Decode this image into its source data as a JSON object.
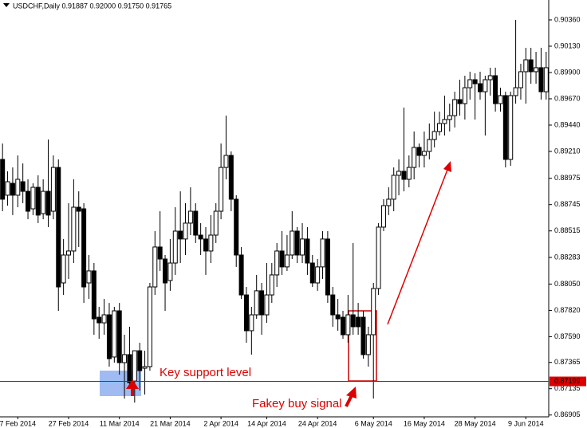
{
  "chart_data": {
    "type": "candlestick",
    "title": "USDCHF,Daily  0.91887 0.92000 0.91750 0.91765",
    "categories": [
      null,
      null,
      null,
      "7 Feb 2014",
      null,
      null,
      null,
      null,
      null,
      null,
      null,
      null,
      null,
      "27 Feb 2014",
      null,
      null,
      null,
      null,
      null,
      null,
      null,
      null,
      null,
      "11 Mar 2014",
      null,
      null,
      null,
      null,
      null,
      null,
      null,
      null,
      null,
      "21 Mar 2014",
      null,
      null,
      null,
      null,
      null,
      null,
      null,
      null,
      null,
      "2 Apr 2014",
      null,
      null,
      null,
      null,
      null,
      null,
      null,
      null,
      "14 Apr 2014",
      null,
      null,
      null,
      null,
      null,
      null,
      null,
      null,
      null,
      "24 Apr 2014",
      null,
      null,
      null,
      null,
      null,
      null,
      null,
      null,
      null,
      null,
      "6 May 2014",
      null,
      null,
      null,
      null,
      null,
      null,
      null,
      null,
      null,
      "16 May 2014",
      null,
      null,
      null,
      null,
      null,
      null,
      null,
      null,
      null,
      "28 May 2014",
      null,
      null,
      null,
      null,
      null,
      null,
      null,
      null,
      null,
      "9 Jun 2014",
      null,
      null,
      null,
      null
    ],
    "open": [
      0.8914,
      0.88827,
      0.88931,
      0.88827,
      0.88945,
      0.88861,
      0.88708,
      0.88896,
      0.88666,
      0.88861,
      0.88687,
      0.8907,
      0.8806,
      0.88304,
      0.88339,
      0.88722,
      0.88708,
      0.8806,
      0.88165,
      0.8776,
      0.87711,
      0.87781,
      0.87412,
      0.87816,
      0.87363,
      0.87433,
      0.87202,
      0.87467,
      0.87314,
      0.87328,
      0.88025,
      0.88374,
      0.88269,
      0.88081,
      0.88234,
      0.88513,
      0.88444,
      0.88583,
      0.88687,
      0.88478,
      0.88444,
      0.88339,
      0.88478,
      0.88687,
      0.8907,
      0.89175,
      0.88792,
      0.88304,
      0.87955,
      0.87642,
      0.87781,
      0.87991,
      0.87781,
      0.87955,
      0.8813,
      0.88339,
      0.882,
      0.88304,
      0.88513,
      0.88304,
      0.88444,
      0.88234,
      0.8806,
      0.882,
      0.88444,
      0.87955,
      0.87781,
      0.8776,
      0.87607,
      0.87781,
      0.8776,
      0.8776,
      0.87433,
      0.87607,
      0.88011,
      0.88548,
      0.88736,
      0.88792,
      0.89001,
      0.89036,
      0.88966,
      0.8907,
      0.89245,
      0.89175,
      0.8921,
      0.89314,
      0.89384,
      0.89454,
      0.89489,
      0.89523,
      0.89663,
      0.89628,
      0.89767,
      0.89837,
      0.89802,
      0.89732,
      0.89837,
      0.89872,
      0.89628,
      0.89698,
      0.8914,
      0.89698,
      0.89767,
      0.89907,
      0.90011,
      0.89907,
      0.89942,
      0.89732
    ],
    "high": [
      0.89279,
      0.89036,
      0.8907,
      0.89175,
      0.89105,
      0.88966,
      0.88931,
      0.89001,
      0.88966,
      0.89314,
      0.89175,
      0.8914,
      0.88444,
      0.88757,
      0.88966,
      0.88861,
      0.88757,
      0.88304,
      0.88234,
      0.87851,
      0.8792,
      0.87885,
      0.87851,
      0.87885,
      0.87607,
      0.87677,
      0.87467,
      0.87537,
      0.87467,
      0.8806,
      0.88513,
      0.88687,
      0.88304,
      0.88444,
      0.88722,
      0.88861,
      0.88757,
      0.88896,
      0.88757,
      0.88583,
      0.88548,
      0.88653,
      0.88757,
      0.89279,
      0.89523,
      0.8921,
      0.88827,
      0.88374,
      0.88025,
      0.87851,
      0.8813,
      0.8806,
      0.88234,
      0.88234,
      0.88409,
      0.88513,
      0.88478,
      0.88687,
      0.88548,
      0.88583,
      0.88548,
      0.88304,
      0.88269,
      0.88513,
      0.88513,
      0.88025,
      0.8792,
      0.87816,
      0.87955,
      0.88409,
      0.87885,
      0.87816,
      0.87677,
      0.8806,
      0.88583,
      0.88792,
      0.88896,
      0.8907,
      0.8914,
      0.89593,
      0.89175,
      0.89384,
      0.89279,
      0.89384,
      0.89454,
      0.89558,
      0.89558,
      0.89698,
      0.89628,
      0.89732,
      0.89837,
      0.89872,
      0.89907,
      0.89893,
      0.89907,
      0.89872,
      0.89942,
      0.89942,
      0.89767,
      0.89732,
      0.89732,
      0.9036,
      0.89976,
      0.90116,
      0.90116,
      0.90081,
      0.90116,
      0.90081
    ],
    "low": [
      0.88687,
      0.88736,
      0.88653,
      0.88722,
      0.88757,
      0.88617,
      0.88653,
      0.88583,
      0.88617,
      0.88548,
      0.88617,
      0.87816,
      0.87955,
      0.88095,
      0.88234,
      0.88374,
      0.87885,
      0.8792,
      0.87607,
      0.87572,
      0.87607,
      0.87328,
      0.87363,
      0.87258,
      0.87049,
      0.87154,
      0.87014,
      0.87119,
      0.87084,
      0.87293,
      0.87955,
      0.88165,
      0.87816,
      0.87991,
      0.8813,
      0.88234,
      0.88304,
      0.88478,
      0.88409,
      0.88304,
      0.8813,
      0.88234,
      0.88409,
      0.88617,
      0.88966,
      0.88687,
      0.882,
      0.8792,
      0.87537,
      0.87433,
      0.87746,
      0.87607,
      0.87711,
      0.87885,
      0.88025,
      0.8813,
      0.88165,
      0.88269,
      0.88234,
      0.88234,
      0.8813,
      0.88025,
      0.87991,
      0.88095,
      0.87885,
      0.87677,
      0.87642,
      0.87572,
      0.87537,
      0.87607,
      0.87607,
      0.87398,
      0.87328,
      0.87049,
      0.87955,
      0.88513,
      0.88653,
      0.88687,
      0.88827,
      0.88861,
      0.88896,
      0.88966,
      0.8907,
      0.8907,
      0.8914,
      0.89245,
      0.89349,
      0.89349,
      0.89384,
      0.89419,
      0.89523,
      0.89489,
      0.89663,
      0.89489,
      0.89663,
      0.89349,
      0.89698,
      0.89558,
      0.89558,
      0.8907,
      0.89084,
      0.89628,
      0.89663,
      0.89628,
      0.89802,
      0.89802,
      0.89663,
      0.89663
    ],
    "close": [
      0.88792,
      0.88945,
      0.88827,
      0.88966,
      0.88861,
      0.88687,
      0.88896,
      0.88653,
      0.88861,
      0.88653,
      0.8907,
      0.88025,
      0.88304,
      0.88339,
      0.88722,
      0.88687,
      0.88025,
      0.88165,
      0.87746,
      0.87711,
      0.87781,
      0.87398,
      0.87816,
      0.87363,
      0.87433,
      0.87188,
      0.87467,
      0.87293,
      0.87328,
      0.88025,
      0.88374,
      0.88269,
      0.8806,
      0.88234,
      0.88513,
      0.88444,
      0.88583,
      0.88687,
      0.88478,
      0.88444,
      0.88339,
      0.88478,
      0.88687,
      0.8907,
      0.89175,
      0.88792,
      0.88304,
      0.87955,
      0.87642,
      0.87781,
      0.87991,
      0.87781,
      0.87955,
      0.8813,
      0.88339,
      0.882,
      0.88304,
      0.88513,
      0.88304,
      0.88444,
      0.88234,
      0.8806,
      0.882,
      0.88444,
      0.87955,
      0.87781,
      0.87746,
      0.87607,
      0.87781,
      0.87677,
      0.87677,
      0.87433,
      0.87607,
      0.88011,
      0.88548,
      0.88736,
      0.88792,
      0.89001,
      0.89036,
      0.88966,
      0.8907,
      0.89245,
      0.89175,
      0.8921,
      0.89314,
      0.89384,
      0.89454,
      0.89489,
      0.89523,
      0.89663,
      0.89628,
      0.89767,
      0.89837,
      0.89802,
      0.89732,
      0.89837,
      0.89872,
      0.89628,
      0.89698,
      0.8914,
      0.89698,
      0.89767,
      0.89907,
      0.90011,
      0.89907,
      0.89942,
      0.89732,
      0.89942
    ],
    "bull_color": "#ffffff",
    "bear_color": "#000000",
    "ylim": [
      0.86889,
      0.90534
    ],
    "yticks": [
      {
        "value": 0.9036,
        "label": "0.90360"
      },
      {
        "value": 0.9013,
        "label": "0.90130"
      },
      {
        "value": 0.899,
        "label": "0.89900"
      },
      {
        "value": 0.8967,
        "label": "0.89670"
      },
      {
        "value": 0.8944,
        "label": "0.89440"
      },
      {
        "value": 0.8921,
        "label": "0.89210"
      },
      0.88975,
      0.88745,
      0.88515,
      0.88283,
      {
        "value": 0.8805,
        "label": "0.88050"
      },
      {
        "value": 0.8782,
        "label": "0.87820"
      },
      {
        "value": 0.8759,
        "label": "0.87590"
      },
      0.87365,
      0.87135,
      0.86905
    ],
    "support_level": 0.87199,
    "support_color": "#dd0000",
    "annotations": [
      "Key support level",
      "Fakey buy signal"
    ]
  }
}
